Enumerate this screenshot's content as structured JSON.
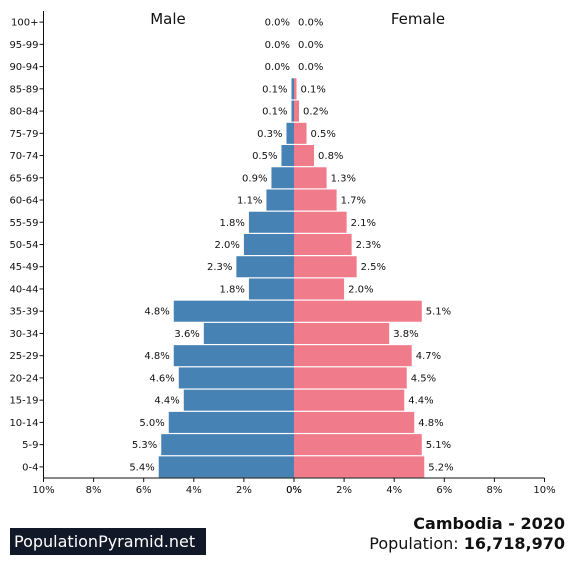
{
  "chart_data": {
    "type": "bar",
    "orientation": "horizontal",
    "layout": "population-pyramid",
    "categories": [
      "0-4",
      "5-9",
      "10-14",
      "15-19",
      "20-24",
      "25-29",
      "30-34",
      "35-39",
      "40-44",
      "45-49",
      "50-54",
      "55-59",
      "60-64",
      "65-69",
      "70-74",
      "75-79",
      "80-84",
      "85-89",
      "90-94",
      "95-99",
      "100+"
    ],
    "series": [
      {
        "name": "Male",
        "color": "#4682b4",
        "values": [
          5.4,
          5.3,
          5.0,
          4.4,
          4.6,
          4.8,
          3.6,
          4.8,
          1.8,
          2.3,
          2.0,
          1.8,
          1.1,
          0.9,
          0.5,
          0.3,
          0.1,
          0.1,
          0.0,
          0.0,
          0.0
        ],
        "labels": [
          "5.4%",
          "5.3%",
          "5.0%",
          "4.4%",
          "4.6%",
          "4.8%",
          "3.6%",
          "4.8%",
          "1.8%",
          "2.3%",
          "2.0%",
          "1.8%",
          "1.1%",
          "0.9%",
          "0.5%",
          "0.3%",
          "0.1%",
          "0.1%",
          "0.0%",
          "0.0%",
          "0.0%"
        ]
      },
      {
        "name": "Female",
        "color": "#f07b8a",
        "values": [
          5.2,
          5.1,
          4.8,
          4.4,
          4.5,
          4.7,
          3.8,
          5.1,
          2.0,
          2.5,
          2.3,
          2.1,
          1.7,
          1.3,
          0.8,
          0.5,
          0.2,
          0.1,
          0.0,
          0.0,
          0.0
        ],
        "labels": [
          "5.2%",
          "5.1%",
          "4.8%",
          "4.4%",
          "4.5%",
          "4.7%",
          "3.8%",
          "5.1%",
          "2.0%",
          "2.5%",
          "2.3%",
          "2.1%",
          "1.7%",
          "1.3%",
          "0.8%",
          "0.5%",
          "0.2%",
          "0.1%",
          "0.0%",
          "0.0%",
          "0.0%"
        ]
      }
    ],
    "xlim": [
      0,
      10
    ],
    "xticks": [
      0,
      2,
      4,
      6,
      8,
      10
    ],
    "xtick_labels_left": [
      "10%",
      "8%",
      "6%",
      "4%",
      "2%",
      "0%"
    ],
    "xtick_labels_right": [
      "0%",
      "2%",
      "4%",
      "6%",
      "8%",
      "10%"
    ],
    "grid": false
  },
  "footer": {
    "brand": "PopulationPyramid.net",
    "country_year": "Cambodia - 2020",
    "population_label": "Population:",
    "population_value": "16,718,970"
  }
}
